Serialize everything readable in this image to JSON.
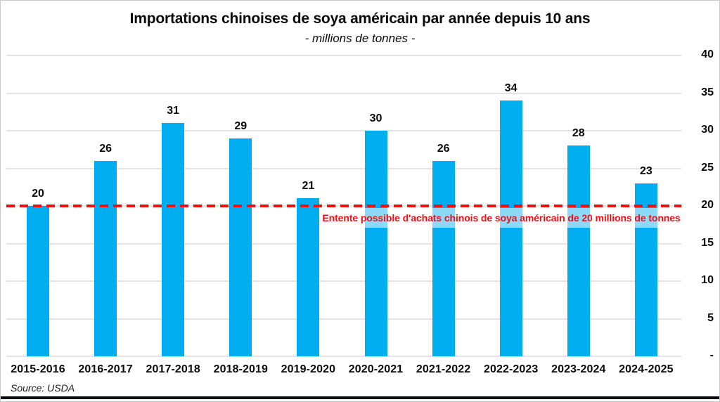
{
  "chart_data": {
    "type": "bar",
    "title": "Importations chinoises de soya américain par année depuis 10 ans",
    "subtitle": "- millions de tonnes -",
    "categories": [
      "2015-2016",
      "2016-2017",
      "2017-2018",
      "2018-2019",
      "2019-2020",
      "2020-2021",
      "2021-2022",
      "2022-2023",
      "2023-2024",
      "2024-2025"
    ],
    "values": [
      20,
      26,
      31,
      29,
      21,
      30,
      26,
      34,
      28,
      23
    ],
    "data_labels_shown": true,
    "xlabel": "",
    "ylabel": "",
    "ylim": [
      0,
      40
    ],
    "ytick_values": [
      40,
      35,
      30,
      25,
      20,
      15,
      10,
      5,
      0
    ],
    "ytick_labels": [
      "40",
      "35",
      "30",
      "25",
      "20",
      "15",
      "10",
      "5",
      "-"
    ],
    "yaxis_side": "right",
    "grid": true,
    "legend": "none",
    "bar_color": "#00AEEF",
    "grid_color": "#e4e4e4",
    "reference_line": {
      "value": 20,
      "style": "dashed",
      "color": "#ED1111",
      "label": "Entente possible d'achats chinois de soya américain de 20 millions de tonnes"
    },
    "source": "Source: USDA"
  }
}
